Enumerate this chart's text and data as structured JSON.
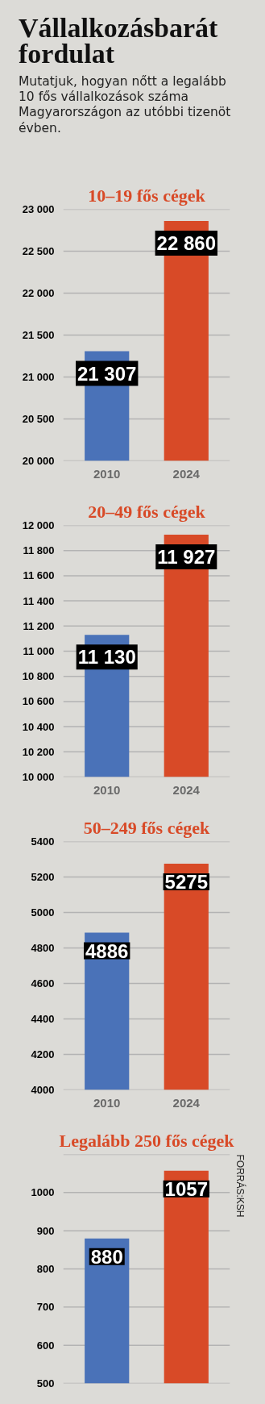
{
  "chart_data": [
    {
      "type": "other",
      "title": "Vállalkozásbarát fordulat",
      "subtitle": "Mutatjuk, hogyan nőtt a legalább 10 fős vállalkozások száma Magyarországon az utóbbi tizenöt évben."
    },
    {
      "type": "bar",
      "title": "10–19 fős cégek",
      "categories": [
        "2010",
        "2024"
      ],
      "values": [
        21307,
        22860
      ],
      "colors": [
        "#4a72b8",
        "#d84a27"
      ],
      "value_labels": [
        "21 307",
        "22 860"
      ],
      "ylim": [
        20000,
        23000
      ],
      "yticks": [
        {
          "value": 20000,
          "label": "20 000"
        },
        {
          "value": 20500,
          "label": "20 500"
        },
        {
          "value": 21000,
          "label": "21 000"
        },
        {
          "value": 21500,
          "label": "21 500"
        },
        {
          "value": 22000,
          "label": "22 000"
        },
        {
          "value": 22500,
          "label": "22 500"
        },
        {
          "value": 23000,
          "label": "23 000"
        }
      ],
      "grid": "y"
    },
    {
      "type": "bar",
      "title": "20–49 fős cégek",
      "categories": [
        "2010",
        "2024"
      ],
      "values": [
        11130,
        11927
      ],
      "colors": [
        "#4a72b8",
        "#d84a27"
      ],
      "value_labels": [
        "11 130",
        "11 927"
      ],
      "ylim": [
        10000,
        12000
      ],
      "yticks": [
        {
          "value": 10000,
          "label": "10 000"
        },
        {
          "value": 10200,
          "label": "10 200"
        },
        {
          "value": 10400,
          "label": "10 400"
        },
        {
          "value": 10600,
          "label": "10 600"
        },
        {
          "value": 10800,
          "label": "10 800"
        },
        {
          "value": 11000,
          "label": "11 000"
        },
        {
          "value": 11200,
          "label": "11 200"
        },
        {
          "value": 11400,
          "label": "11 400"
        },
        {
          "value": 11600,
          "label": "11 600"
        },
        {
          "value": 11800,
          "label": "11 800"
        },
        {
          "value": 12000,
          "label": "12 000"
        }
      ],
      "grid": "y"
    },
    {
      "type": "bar",
      "title": "50–249 fős cégek",
      "categories": [
        "2010",
        "2024"
      ],
      "values": [
        4886,
        5275
      ],
      "colors": [
        "#4a72b8",
        "#d84a27"
      ],
      "data_labels": true,
      "ylim": [
        4000,
        5400
      ],
      "yticks": [
        4000,
        4200,
        4400,
        4600,
        4800,
        5000,
        5200,
        5400
      ],
      "grid": "y"
    },
    {
      "type": "bar",
      "title": "Legalább 250 fős cégek",
      "categories": [
        null,
        null
      ],
      "values": [
        880,
        1057
      ],
      "colors": [
        "#4a72b8",
        "#d84a27"
      ],
      "data_labels": true,
      "ylim": [
        500,
        1100
      ],
      "yticks": [
        500,
        600,
        700,
        800,
        900,
        1000,
        {
          "value": 1100,
          "label": null
        }
      ],
      "grid": "y",
      "annotations": [
        "FORRÁS:KSH"
      ]
    }
  ]
}
